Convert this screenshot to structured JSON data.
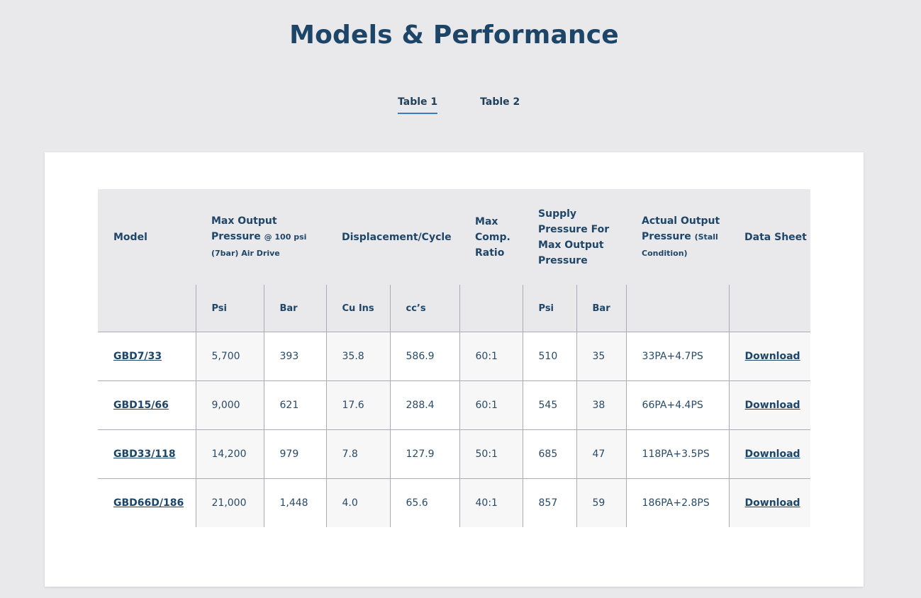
{
  "title": "Models & Performance",
  "tabs": [
    {
      "label": "Table 1",
      "active": true
    },
    {
      "label": "Table 2",
      "active": false
    }
  ],
  "table": {
    "headers": {
      "model": "Model",
      "max_output_main": "Max Output Pressure",
      "max_output_note": "@ 100 psi (7bar) Air Drive",
      "displacement": "Displacement/Cycle",
      "max_comp": "Max Comp. Ratio",
      "supply": "Supply Pressure For Max Output Pressure",
      "actual_main": "Actual Output Pressure",
      "actual_note": "(Stall Condition)",
      "data_sheet": "Data Sheet"
    },
    "subheaders": {
      "psi": "Psi",
      "bar": "Bar",
      "cu_ins": "Cu Ins",
      "ccs": "cc’s",
      "supply_psi": "Psi",
      "supply_bar": "Bar"
    },
    "rows": [
      {
        "model": "GBD7/33",
        "psi": "5,700",
        "bar": "393",
        "cu_ins": "35.8",
        "ccs": "586.9",
        "ratio": "60:1",
        "supply_psi": "510",
        "supply_bar": "35",
        "actual": "33PA+4.7PS",
        "sheet": "Download"
      },
      {
        "model": "GBD15/66",
        "psi": "9,000",
        "bar": "621",
        "cu_ins": "17.6",
        "ccs": "288.4",
        "ratio": "60:1",
        "supply_psi": "545",
        "supply_bar": "38",
        "actual": "66PA+4.4PS",
        "sheet": "Download"
      },
      {
        "model": "GBD33/118",
        "psi": "14,200",
        "bar": "979",
        "cu_ins": "7.8",
        "ccs": "127.9",
        "ratio": "50:1",
        "supply_psi": "685",
        "supply_bar": "47",
        "actual": "118PA+3.5PS",
        "sheet": "Download"
      },
      {
        "model": "GBD66D/186",
        "psi": "21,000",
        "bar": "1,448",
        "cu_ins": "4.0",
        "ccs": "65.6",
        "ratio": "40:1",
        "supply_psi": "857",
        "supply_bar": "59",
        "actual": "186PA+2.8PS",
        "sheet": "Download"
      }
    ]
  }
}
